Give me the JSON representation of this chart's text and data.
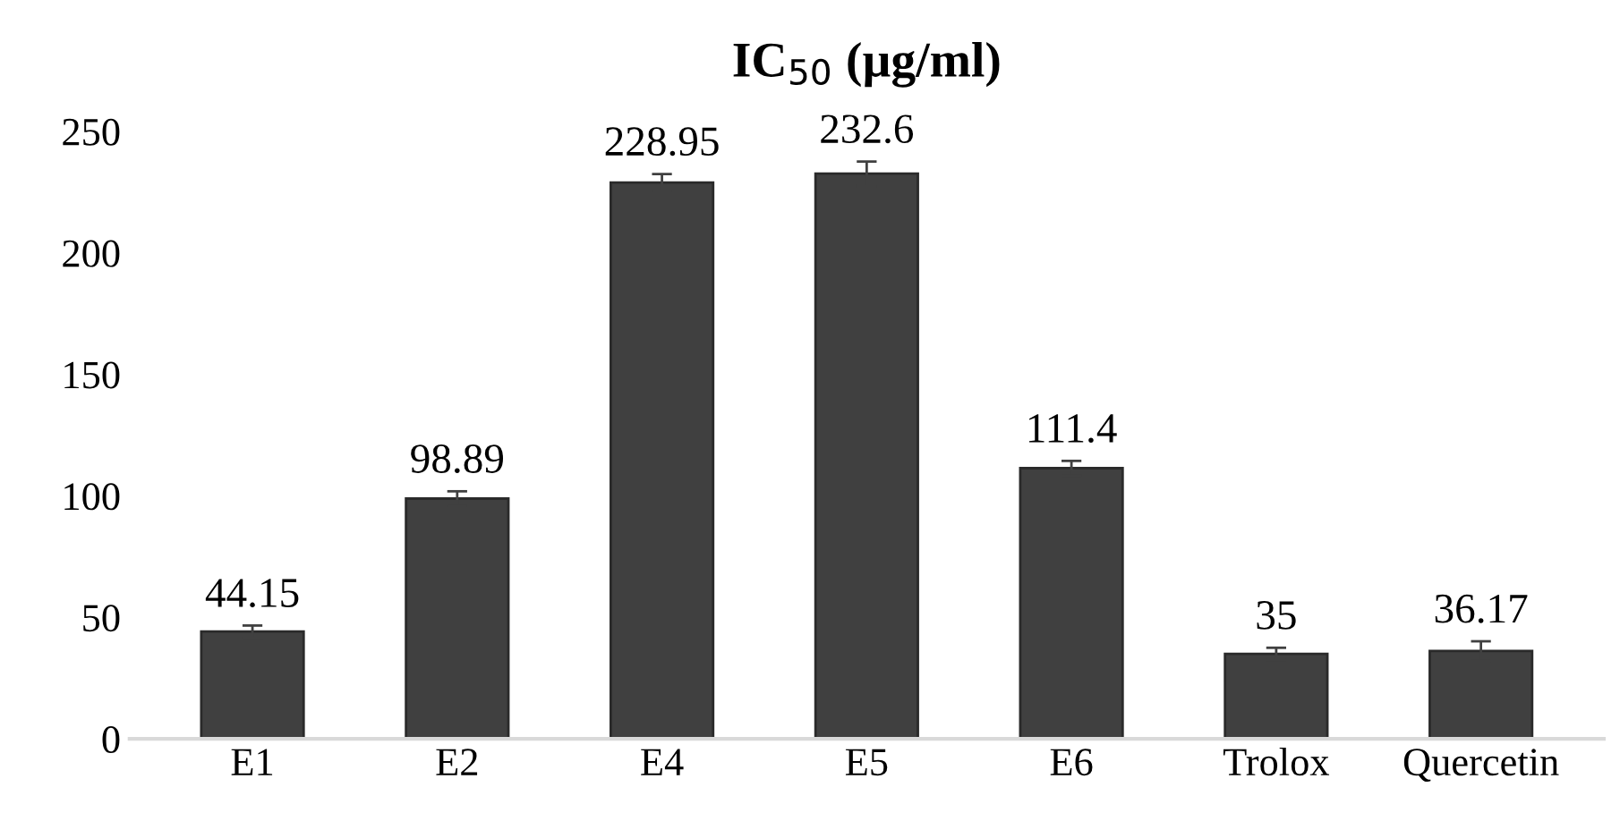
{
  "chart_data": {
    "type": "bar",
    "title": "IC$_{50}$ (µg/ml)",
    "categories": [
      "E1",
      "E2",
      "E4",
      "E5",
      "E6",
      "Trolox",
      "Quercetin"
    ],
    "values": [
      44.15,
      98.89,
      228.95,
      232.6,
      111.4,
      35,
      36.17
    ],
    "errors": [
      2.5,
      3,
      3.5,
      5,
      3,
      2.5,
      4
    ],
    "color": "#404040",
    "data_labels": true,
    "ylim": [
      0,
      250
    ],
    "yticks": [
      0,
      50,
      100,
      150,
      200,
      250
    ],
    "grid": false,
    "legend": false
  }
}
